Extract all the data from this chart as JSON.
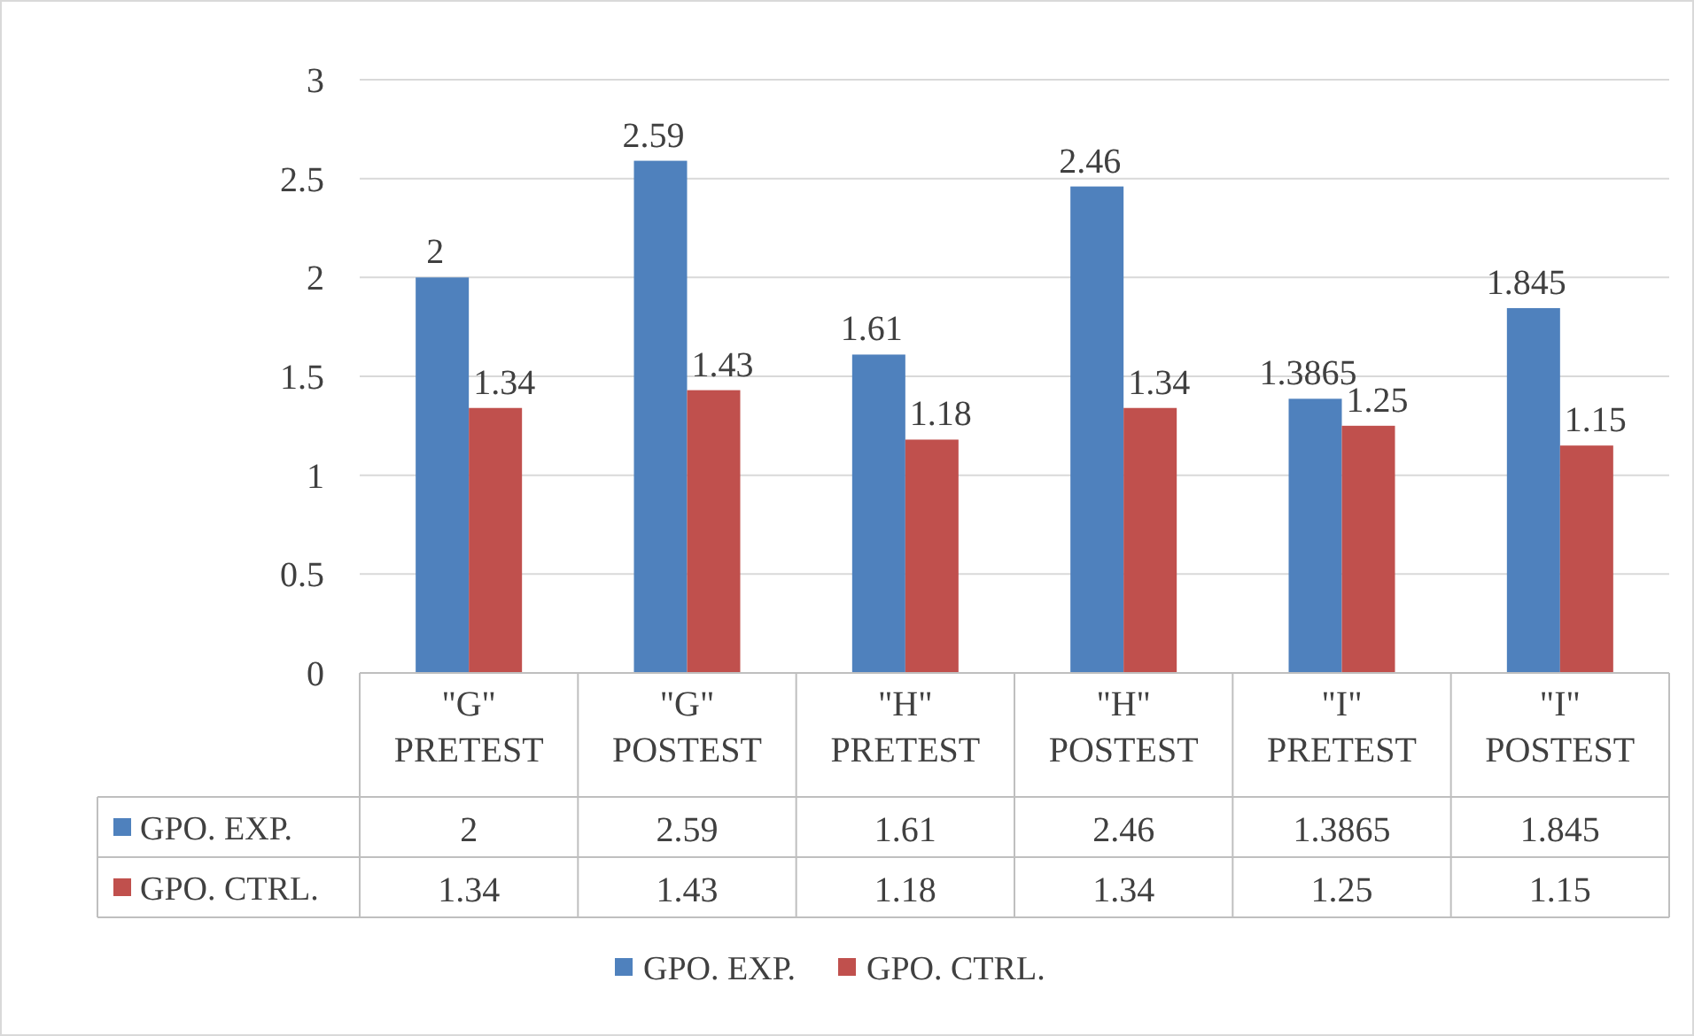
{
  "chart_data": {
    "type": "bar",
    "categories": [
      "\"G\" PRETEST",
      "\"G\" POSTEST",
      "\"H\" PRETEST",
      "\"H\" POSTEST",
      "\"I\" PRETEST",
      "\"I\" POSTEST"
    ],
    "series": [
      {
        "name": "GPO. EXP.",
        "color": "#4f81bd",
        "values": [
          2,
          2.59,
          1.61,
          2.46,
          1.3865,
          1.845
        ]
      },
      {
        "name": "GPO. CTRL.",
        "color": "#c0504d",
        "values": [
          1.34,
          1.43,
          1.18,
          1.34,
          1.25,
          1.15
        ]
      }
    ],
    "annotations": [
      {
        "text": "2",
        "x": "\"G\" PRETEST",
        "y": 2
      },
      {
        "text": "2.59",
        "x": "\"G\" POSTEST",
        "y": 2.59
      },
      {
        "text": "1.61",
        "x": "\"H\" PRETEST",
        "y": 1.61
      },
      {
        "text": "2.46",
        "x": "\"H\" POSTEST",
        "y": 2.46
      },
      {
        "text": "1.3865",
        "x": "\"I\" PRETEST",
        "y": 1.3865
      },
      {
        "text": "1.845",
        "x": "\"I\" POSTEST",
        "y": 1.845
      },
      {
        "text": "1.34",
        "x": "\"G\" PRETEST",
        "y": 1.34
      },
      {
        "text": "1.43",
        "x": "\"G\" POSTEST",
        "y": 1.43
      },
      {
        "text": "1.18",
        "x": "\"H\" PRETEST",
        "y": 1.18
      },
      {
        "text": "1.34",
        "x": "\"H\" POSTEST",
        "y": 1.34
      },
      {
        "text": "1.25",
        "x": "\"I\" PRETEST",
        "y": 1.25
      },
      {
        "text": "1.15",
        "x": "\"I\" POSTEST",
        "y": 1.15
      }
    ],
    "ylim": [
      0,
      3
    ],
    "yticks": [
      0,
      0.5,
      1,
      1.5,
      2,
      2.5,
      3
    ],
    "grid": "y",
    "data_labels": true,
    "legend": "bottom"
  }
}
